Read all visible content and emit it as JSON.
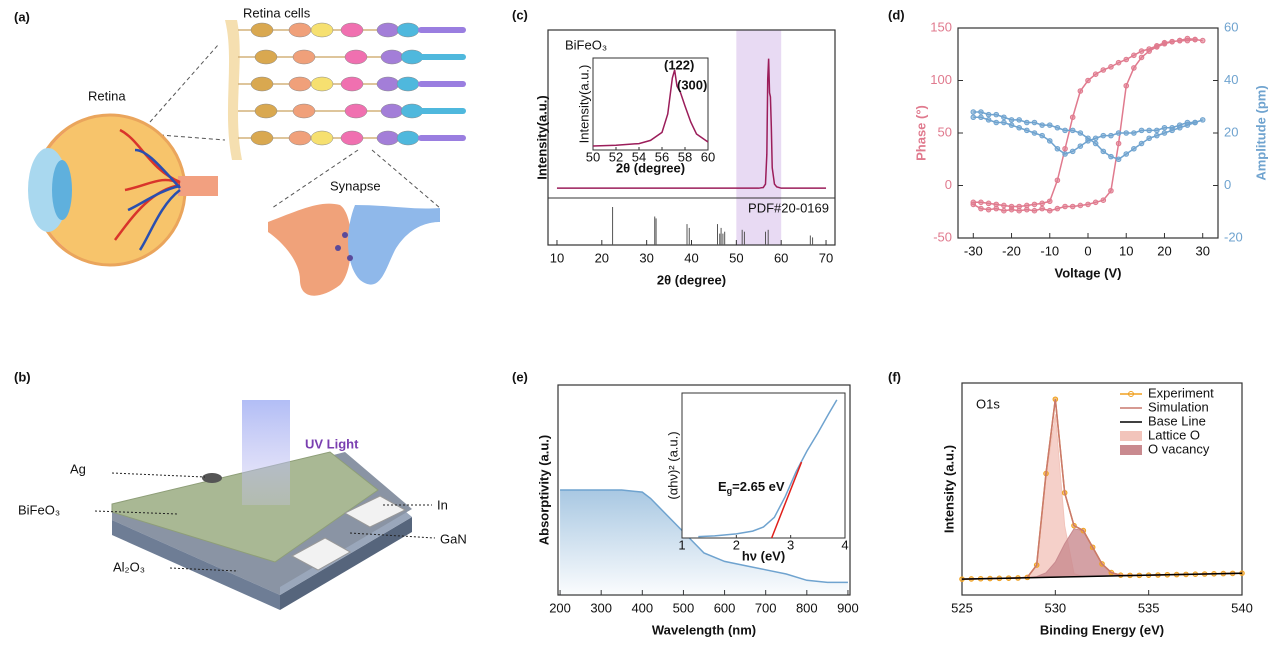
{
  "panel_a": {
    "panel_label": "(a)",
    "labels": {
      "retina_cells": "Retina cells",
      "retina": "Retina",
      "synapse": "Synapse"
    }
  },
  "panel_b": {
    "panel_label": "(b)",
    "labels": {
      "uv_light": "UV Light",
      "ag": "Ag",
      "bifeo3": "BiFeO₃",
      "al2o3": "Al₂O₃",
      "in": "In",
      "gan": "GaN"
    }
  },
  "chart_data": [
    {
      "type": "line",
      "panel_label": "(c)",
      "xlabel": "2θ (degree)",
      "ylabel": "Intensity(a.u.)",
      "annotation": "BiFeO₃",
      "xlim": [
        8,
        72
      ],
      "xticks": [
        10,
        20,
        30,
        40,
        50,
        60,
        70
      ],
      "ylim": [
        0,
        1.1
      ],
      "highlight_xrange": [
        50,
        60
      ],
      "highlight_color": "#e8daf3",
      "series": [
        {
          "color": "#9b1d5a",
          "x": [
            10,
            50,
            55,
            56,
            56.5,
            56.8,
            57,
            57.2,
            57.4,
            57.6,
            57.8,
            58,
            58.5,
            59,
            60,
            70
          ],
          "values": [
            0.05,
            0.05,
            0.05,
            0.055,
            0.08,
            0.3,
            0.85,
            1.0,
            0.75,
            0.72,
            0.5,
            0.2,
            0.08,
            0.06,
            0.05,
            0.05
          ]
        }
      ],
      "reference": {
        "label": "PDF#20-0169",
        "color": "#555555",
        "ylim": [
          0,
          100
        ],
        "x": [
          22.4,
          31.8,
          32.1,
          39.0,
          39.5,
          45.8,
          46.3,
          46.6,
          47.0,
          47.4,
          51.3,
          51.8,
          56.5,
          57.1,
          66.5,
          67.0
        ],
        "values": [
          100,
          75,
          70,
          55,
          45,
          55,
          30,
          45,
          30,
          35,
          40,
          35,
          35,
          40,
          25,
          20
        ]
      },
      "inset": {
        "xlabel": "2θ (degree)",
        "ylabel": "Intensity(a.u.)",
        "xlim": [
          50,
          60
        ],
        "xticks": [
          50,
          52,
          54,
          56,
          58,
          60
        ],
        "ylim": [
          0,
          1.15
        ],
        "peak_labels": [
          "(122)",
          "(300)"
        ],
        "series": [
          {
            "color": "#9b1d5a",
            "x": [
              50,
              52,
              54,
              55,
              56,
              56.5,
              56.9,
              57.1,
              57.3,
              57.6,
              58,
              58.5,
              59,
              60
            ],
            "values": [
              0.05,
              0.06,
              0.08,
              0.12,
              0.22,
              0.45,
              0.9,
              1.0,
              0.8,
              0.72,
              0.55,
              0.35,
              0.2,
              0.1
            ]
          }
        ]
      }
    },
    {
      "type": "line",
      "panel_label": "(d)",
      "xlabel": "Voltage (V)",
      "ylabel": "Phase (°)",
      "y2label": "Amplitude (pm)",
      "xlim": [
        -34,
        34
      ],
      "xticks": [
        -30,
        -20,
        -10,
        0,
        10,
        20,
        30
      ],
      "ylim": [
        -50,
        150
      ],
      "yticks": [
        -50,
        0,
        50,
        100,
        150
      ],
      "y2lim": [
        -20,
        60
      ],
      "y2ticks": [
        -20,
        0,
        20,
        40,
        60
      ],
      "x": [
        -30,
        -28,
        -26,
        -24,
        -22,
        -20,
        -18,
        -16,
        -14,
        -12,
        -10,
        -8,
        -6,
        -4,
        -2,
        0,
        2,
        4,
        6,
        8,
        10,
        12,
        14,
        16,
        18,
        20,
        22,
        24,
        26,
        28,
        30,
        28,
        26,
        24,
        22,
        20,
        18,
        16,
        14,
        12,
        10,
        8,
        6,
        4,
        2,
        0,
        -2,
        -4,
        -6,
        -8,
        -10,
        -12,
        -14,
        -16,
        -18,
        -20,
        -22,
        -24,
        -26,
        -28,
        -30
      ],
      "series": [
        {
          "color": "#e07a8e",
          "marker": "circle",
          "values": [
            -18,
            -22,
            -23,
            -22,
            -24,
            -23,
            -24,
            -23,
            -24,
            -22,
            -24,
            -22,
            -20,
            -20,
            -19,
            -18,
            -16,
            -14,
            -5,
            40,
            95,
            112,
            122,
            128,
            132,
            135,
            137,
            138,
            138,
            139,
            138,
            139,
            140,
            138,
            137,
            136,
            133,
            130,
            128,
            124,
            120,
            117,
            113,
            110,
            106,
            100,
            90,
            65,
            35,
            5,
            -15,
            -17,
            -18,
            -19,
            -20,
            -20,
            -19,
            -18,
            -17,
            -16,
            -16
          ]
        },
        {
          "color": "#6fa3cf",
          "marker": "circle",
          "axis": "y2",
          "values": [
            26,
            26,
            25,
            24,
            24,
            23,
            22,
            21,
            20,
            19,
            17,
            14,
            12,
            13,
            15,
            17,
            18,
            19,
            19,
            20,
            20,
            20,
            21,
            21,
            21,
            22,
            22,
            23,
            24,
            24,
            25,
            24,
            23,
            22,
            21,
            20,
            19,
            18,
            16,
            14,
            12,
            10,
            11,
            13,
            16,
            18,
            20,
            21,
            21,
            22,
            23,
            23,
            24,
            24,
            25,
            25,
            26,
            27,
            27,
            28,
            28
          ]
        }
      ]
    },
    {
      "type": "area",
      "panel_label": "(e)",
      "xlabel": "Wavelength (nm)",
      "ylabel": "Absorptivity (a.u.)",
      "xlim": [
        195,
        905
      ],
      "xticks": [
        200,
        300,
        400,
        500,
        600,
        700,
        800,
        900
      ],
      "ylim": [
        0,
        1
      ],
      "series": [
        {
          "color": "#6fa3cf",
          "x": [
            200,
            250,
            300,
            350,
            400,
            420,
            450,
            500,
            550,
            600,
            650,
            700,
            750,
            800,
            850,
            900
          ],
          "values": [
            0.5,
            0.5,
            0.5,
            0.5,
            0.49,
            0.46,
            0.4,
            0.3,
            0.2,
            0.16,
            0.14,
            0.12,
            0.1,
            0.07,
            0.06,
            0.06
          ]
        }
      ],
      "inset": {
        "xlabel": "hν (eV)",
        "ylabel": "(αhν)² (a.u.)",
        "xlim": [
          1,
          4
        ],
        "xticks": [
          1,
          2,
          3,
          4
        ],
        "ylim": [
          0,
          1.05
        ],
        "annotation": {
          "symbol": "E",
          "subscript": "g",
          "text": "=2.65 eV"
        },
        "series": [
          {
            "color": "#6fa3cf",
            "x": [
              1.3,
              1.6,
              2.0,
              2.3,
              2.5,
              2.7,
              2.9,
              3.1,
              3.3,
              3.5,
              3.7,
              3.85
            ],
            "values": [
              0.01,
              0.015,
              0.03,
              0.05,
              0.08,
              0.15,
              0.3,
              0.48,
              0.63,
              0.76,
              0.9,
              1.0
            ]
          },
          {
            "color": "#e0201b",
            "x": [
              2.65,
              3.2
            ],
            "values": [
              0,
              0.55
            ]
          }
        ]
      }
    },
    {
      "type": "line",
      "panel_label": "(f)",
      "xlabel": "Binding Energy (eV)",
      "ylabel": "Intensity (a.u.)",
      "annotation": "O1s",
      "xlim": [
        525,
        540
      ],
      "xticks": [
        525,
        530,
        535,
        540
      ],
      "ylim": [
        0.05,
        1.12
      ],
      "legend": "top-right",
      "series": [
        {
          "name": "Experiment",
          "color": "#f0a020",
          "marker": "circle",
          "x": [
            525,
            525.5,
            526,
            526.5,
            527,
            527.5,
            528,
            528.5,
            529,
            529.5,
            530,
            530.5,
            531,
            531.5,
            532,
            532.5,
            533,
            533.5,
            534,
            534.5,
            535,
            535.5,
            536,
            536.5,
            537,
            537.5,
            538,
            538.5,
            539,
            539.5,
            540
          ],
          "values": [
            0.13,
            0.131,
            0.132,
            0.133,
            0.134,
            0.135,
            0.136,
            0.139,
            0.201,
            0.663,
            1.038,
            0.566,
            0.4,
            0.375,
            0.291,
            0.207,
            0.163,
            0.15,
            0.149,
            0.149,
            0.15,
            0.151,
            0.152,
            0.153,
            0.154,
            0.155,
            0.156,
            0.157,
            0.158,
            0.159,
            0.16
          ]
        },
        {
          "name": "Simulation",
          "color": "#c8786e",
          "x": [
            525,
            525.5,
            526,
            526.5,
            527,
            527.5,
            528,
            528.5,
            529,
            529.5,
            530,
            530.5,
            531,
            531.5,
            532,
            532.5,
            533,
            533.5,
            534,
            534.5,
            535,
            535.5,
            536,
            536.5,
            537,
            537.5,
            538,
            538.5,
            539,
            539.5,
            540
          ],
          "values": [
            0.13,
            0.131,
            0.132,
            0.133,
            0.134,
            0.135,
            0.136,
            0.139,
            0.201,
            0.663,
            1.038,
            0.566,
            0.4,
            0.375,
            0.291,
            0.207,
            0.163,
            0.15,
            0.149,
            0.149,
            0.15,
            0.151,
            0.152,
            0.153,
            0.154,
            0.155,
            0.156,
            0.157,
            0.158,
            0.159,
            0.16
          ]
        },
        {
          "name": "Base Line",
          "color": "#000000",
          "x": [
            525,
            540
          ],
          "values": [
            0.13,
            0.16
          ]
        },
        {
          "name": "Lattice O",
          "type": "area",
          "color": "#f2c4bb",
          "x": [
            527,
            527.5,
            528,
            528.5,
            529,
            529.5,
            530,
            530.5,
            531,
            531.5,
            532,
            532.5,
            533,
            533.5,
            534,
            534.5,
            535
          ],
          "values": [
            0.134,
            0.135,
            0.136,
            0.138,
            0.197,
            0.64,
            0.962,
            0.399,
            0.158,
            0.143,
            0.144,
            0.145,
            0.146,
            0.147,
            0.148,
            0.149,
            0.15
          ]
        },
        {
          "name": "O vacancy",
          "type": "area",
          "color": "#c98a8f",
          "x": [
            527,
            527.5,
            528,
            528.5,
            529,
            529.5,
            530,
            530.5,
            531,
            531.5,
            532,
            532.5,
            533,
            533.5,
            534,
            534.5,
            535
          ],
          "values": [
            0.134,
            0.135,
            0.136,
            0.138,
            0.143,
            0.162,
            0.216,
            0.308,
            0.384,
            0.375,
            0.291,
            0.207,
            0.163,
            0.15,
            0.149,
            0.149,
            0.15
          ]
        }
      ]
    }
  ]
}
